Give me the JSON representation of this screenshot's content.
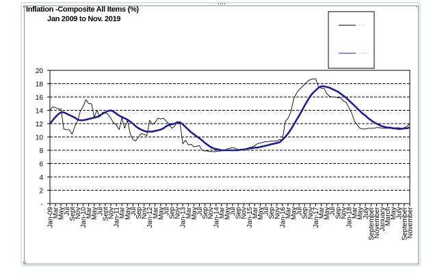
{
  "chart_data": {
    "type": "line",
    "title": "Inflation -Composite All Items (%)",
    "subtitle": "Jan 2009 to Nov. 2019",
    "x_range": [
      "2009-01",
      "2019-11"
    ],
    "ylim": [
      0,
      20
    ],
    "y_ticks": [
      0,
      2,
      4,
      6,
      8,
      10,
      12,
      14,
      16,
      18,
      20
    ],
    "y_tick_labels": [
      "-",
      "2",
      "4",
      "6",
      "8",
      "10",
      "12",
      "14",
      "16",
      "18",
      "20"
    ],
    "x_tick_labels": [
      "Jan-09",
      "Mar",
      "May",
      "Jul",
      "Sept",
      "Nov",
      "Jan-10",
      "Mar",
      "May",
      "Jul",
      "Sept",
      "Nov",
      "Jan-11",
      "Mar",
      "May",
      "Jul",
      "Sep",
      "Nov",
      "Jan-12",
      "Mar",
      "May",
      "Jul",
      "Sep",
      "Nov",
      "Jan-13",
      "Mar",
      "May",
      "Jul",
      "Sep",
      "Nov",
      "Jan-14",
      "Mar",
      "May",
      "Jul",
      "Sep",
      "Nov",
      "Jan-15",
      "Mar",
      "May",
      "Jul",
      "Sep",
      "Nov",
      "Jan-16",
      "Mar",
      "May",
      "Jul",
      "Sep",
      "Nov",
      "Jan-17",
      "Mar",
      "May",
      "Jul",
      "Sep",
      "Nov",
      "Jan-18",
      "Mar",
      "May",
      "July",
      "September",
      "November",
      "January",
      "March",
      "May",
      "July",
      "September",
      "November"
    ],
    "grid": "horizontal dashed",
    "legend": "top-right",
    "series": [
      {
        "color": "#000000",
        "style": "thin",
        "values": [
          14.0,
          14.5,
          14.4,
          14.2,
          14.2,
          11.2,
          11.1,
          11.1,
          10.4,
          11.6,
          12.4,
          13.9,
          14.6,
          15.6,
          15.0,
          15.0,
          13.0,
          14.0,
          13.0,
          13.7,
          13.6,
          13.4,
          12.8,
          12.1,
          11.8,
          11.1,
          12.9,
          11.3,
          12.5,
          10.5,
          9.6,
          9.4,
          10.0,
          10.5,
          10.4,
          10.2,
          12.5,
          11.9,
          12.2,
          12.8,
          12.7,
          12.8,
          12.4,
          11.9,
          11.3,
          11.6,
          12.2,
          12.0,
          9.0,
          9.5,
          8.8,
          8.9,
          8.5,
          8.6,
          8.7,
          8.0,
          7.9,
          7.9,
          7.8,
          7.8,
          7.8,
          7.9,
          7.9,
          8.0,
          8.2,
          8.3,
          8.4,
          8.3,
          8.1,
          8.0,
          8.1,
          8.2,
          8.4,
          8.5,
          8.7,
          9.0,
          9.1,
          9.2,
          9.3,
          9.3,
          9.4,
          9.4,
          9.4,
          9.6,
          9.6,
          12.3,
          12.8,
          13.7,
          15.6,
          16.5,
          17.1,
          17.5,
          17.9,
          18.3,
          18.6,
          18.7,
          18.7,
          17.6,
          17.3,
          17.3,
          16.5,
          16.1,
          16.0,
          16.0,
          15.9,
          15.9,
          15.4,
          15.2,
          14.4,
          13.6,
          12.4,
          11.8,
          11.3,
          11.2,
          11.2,
          11.3,
          11.3,
          11.3,
          11.4,
          11.4,
          11.3,
          11.3,
          11.3,
          11.3,
          11.2,
          11.2,
          11.1,
          11.2,
          11.4,
          11.6,
          12.0
        ]
      },
      {
        "color": "#1f1f8a",
        "style": "thick",
        "values": [
          12.0,
          12.5,
          13.0,
          13.4,
          13.7,
          13.7,
          13.5,
          13.3,
          13.1,
          12.9,
          12.6,
          12.5,
          12.5,
          12.6,
          12.7,
          12.8,
          12.9,
          13.0,
          13.2,
          13.5,
          13.7,
          13.9,
          14.0,
          13.8,
          13.5,
          13.2,
          13.0,
          12.8,
          12.6,
          12.3,
          12.0,
          11.6,
          11.3,
          11.1,
          10.9,
          10.8,
          10.8,
          10.8,
          10.9,
          11.0,
          11.1,
          11.3,
          11.6,
          11.8,
          11.9,
          12.0,
          12.2,
          12.2,
          11.9,
          11.5,
          11.1,
          10.7,
          10.4,
          10.1,
          9.8,
          9.5,
          9.1,
          8.8,
          8.5,
          8.3,
          8.2,
          8.1,
          8.0,
          8.0,
          8.0,
          8.0,
          8.0,
          8.0,
          8.0,
          8.1,
          8.1,
          8.2,
          8.3,
          8.3,
          8.4,
          8.4,
          8.5,
          8.6,
          8.7,
          8.8,
          8.9,
          9.0,
          9.1,
          9.2,
          9.6,
          10.0,
          10.5,
          11.1,
          11.8,
          12.5,
          13.2,
          13.9,
          14.7,
          15.4,
          16.1,
          16.6,
          17.0,
          17.4,
          17.6,
          17.6,
          17.5,
          17.4,
          17.2,
          17.0,
          16.8,
          16.5,
          16.2,
          15.9,
          15.5,
          15.1,
          14.7,
          14.3,
          13.9,
          13.5,
          13.2,
          12.8,
          12.5,
          12.2,
          12.0,
          11.8,
          11.6,
          11.5,
          11.4,
          11.4,
          11.3,
          11.3,
          11.3,
          11.2,
          11.3,
          11.3,
          11.4
        ]
      }
    ]
  }
}
